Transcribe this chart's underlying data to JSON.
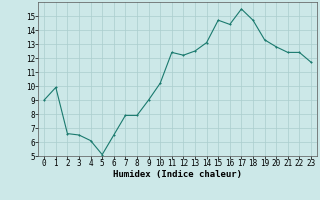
{
  "x": [
    0,
    1,
    2,
    3,
    4,
    5,
    6,
    7,
    8,
    9,
    10,
    11,
    12,
    13,
    14,
    15,
    16,
    17,
    18,
    19,
    20,
    21,
    22,
    23
  ],
  "y": [
    9.0,
    9.9,
    6.6,
    6.5,
    6.1,
    5.1,
    6.5,
    7.9,
    7.9,
    9.0,
    10.2,
    12.4,
    12.2,
    12.5,
    13.1,
    14.7,
    14.4,
    15.5,
    14.7,
    13.3,
    12.8,
    12.4,
    12.4,
    11.7
  ],
  "xlabel": "Humidex (Indice chaleur)",
  "xlim": [
    -0.5,
    23.5
  ],
  "ylim": [
    5,
    16
  ],
  "yticks": [
    5,
    6,
    7,
    8,
    9,
    10,
    11,
    12,
    13,
    14,
    15
  ],
  "xticks": [
    0,
    1,
    2,
    3,
    4,
    5,
    6,
    7,
    8,
    9,
    10,
    11,
    12,
    13,
    14,
    15,
    16,
    17,
    18,
    19,
    20,
    21,
    22,
    23
  ],
  "line_color": "#1a7a6e",
  "marker_color": "#1a7a6e",
  "bg_color": "#cce8e8",
  "grid_color": "#aacece",
  "xlabel_fontsize": 6.5,
  "tick_fontsize": 5.5,
  "marker_size": 2.0,
  "line_width": 0.8
}
